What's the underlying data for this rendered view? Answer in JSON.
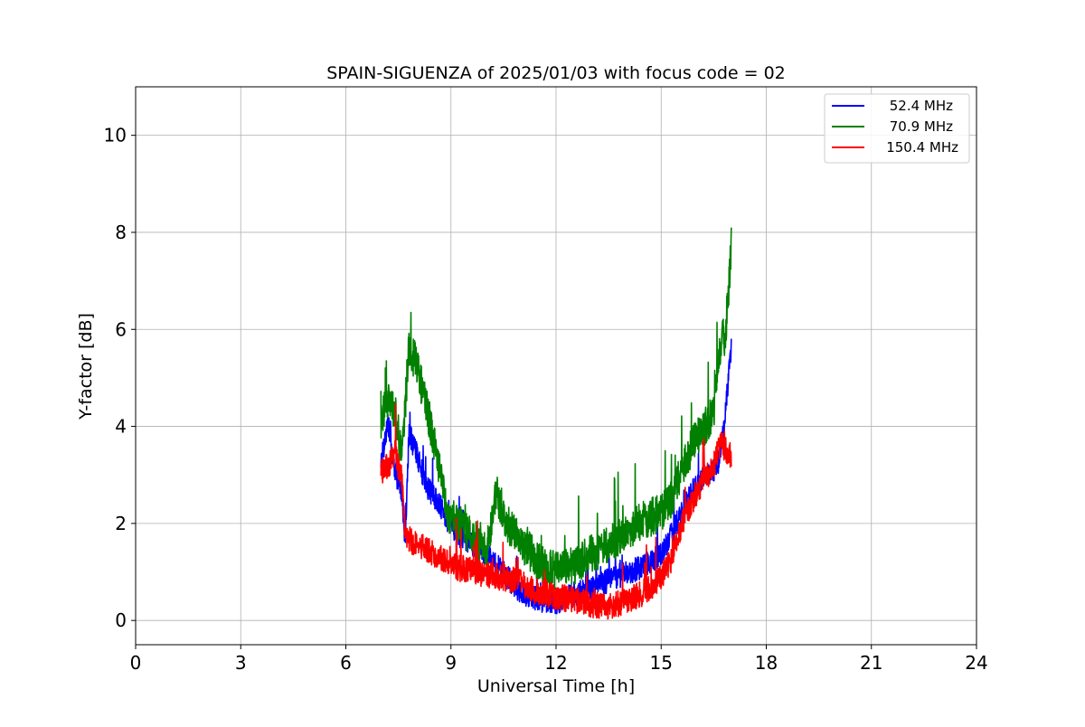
{
  "chart_data": {
    "type": "line",
    "title": "SPAIN-SIGUENZA of 2025/01/03 with focus code = 02",
    "xlabel": "Universal Time [h]",
    "ylabel": "Y-factor [dB]",
    "xlim": [
      0,
      24
    ],
    "ylim": [
      -0.5,
      11
    ],
    "xticks": [
      "0",
      "3",
      "6",
      "9",
      "12",
      "15",
      "18",
      "21",
      "24"
    ],
    "yticks": [
      "0",
      "2",
      "4",
      "6",
      "8",
      "10"
    ],
    "grid": true,
    "legend_position": "top-right",
    "series": [
      {
        "name": "52.4 MHz",
        "color": "#0000ff",
        "x": [
          7.0,
          7.2,
          7.4,
          7.6,
          7.7,
          7.8,
          8.0,
          8.3,
          8.6,
          8.9,
          9.2,
          9.6,
          10.0,
          10.5,
          11.0,
          11.5,
          12.0,
          12.5,
          13.0,
          13.5,
          14.0,
          14.5,
          15.0,
          15.3,
          15.6,
          15.9,
          16.2,
          16.5,
          16.7,
          16.85,
          17.0
        ],
        "y": [
          3.2,
          4.0,
          3.0,
          2.6,
          1.4,
          3.8,
          3.4,
          2.7,
          2.4,
          2.0,
          1.7,
          1.5,
          1.3,
          0.9,
          0.5,
          0.35,
          0.3,
          0.45,
          0.6,
          0.75,
          0.9,
          1.05,
          1.3,
          1.7,
          2.2,
          2.6,
          2.9,
          3.0,
          3.3,
          4.4,
          5.6
        ],
        "noise": 0.5
      },
      {
        "name": "70.9 MHz",
        "color": "#008000",
        "x": [
          7.0,
          7.2,
          7.4,
          7.6,
          7.8,
          8.0,
          8.3,
          8.6,
          8.9,
          9.2,
          9.6,
          10.0,
          10.3,
          10.6,
          11.0,
          11.5,
          12.0,
          12.5,
          13.0,
          13.5,
          14.0,
          14.5,
          15.0,
          15.3,
          15.6,
          15.9,
          16.2,
          16.5,
          16.7,
          16.85,
          17.0
        ],
        "y": [
          4.0,
          4.4,
          4.2,
          3.3,
          5.5,
          5.2,
          4.3,
          3.3,
          2.1,
          1.9,
          1.6,
          1.3,
          2.5,
          1.9,
          1.5,
          1.1,
          0.9,
          1.0,
          1.25,
          1.45,
          1.7,
          1.95,
          2.1,
          2.4,
          3.0,
          3.5,
          3.8,
          4.2,
          5.6,
          5.8,
          7.6
        ],
        "noise": 0.8
      },
      {
        "name": "150.4 MHz",
        "color": "#ff0000",
        "x": [
          7.0,
          7.2,
          7.4,
          7.6,
          7.7,
          7.8,
          8.0,
          8.3,
          8.6,
          8.9,
          9.2,
          9.6,
          10.0,
          10.5,
          11.0,
          11.5,
          12.0,
          12.5,
          13.0,
          13.5,
          14.0,
          14.5,
          15.0,
          15.3,
          15.6,
          15.9,
          16.2,
          16.5,
          16.7,
          16.85,
          17.0
        ],
        "y": [
          3.0,
          3.1,
          3.4,
          2.8,
          1.6,
          1.6,
          1.5,
          1.4,
          1.25,
          1.1,
          1.0,
          0.95,
          0.85,
          0.8,
          0.7,
          0.5,
          0.4,
          0.35,
          0.25,
          0.2,
          0.3,
          0.5,
          0.8,
          1.2,
          1.9,
          2.4,
          2.8,
          3.1,
          3.6,
          3.4,
          3.3
        ],
        "noise": 0.55
      }
    ]
  }
}
